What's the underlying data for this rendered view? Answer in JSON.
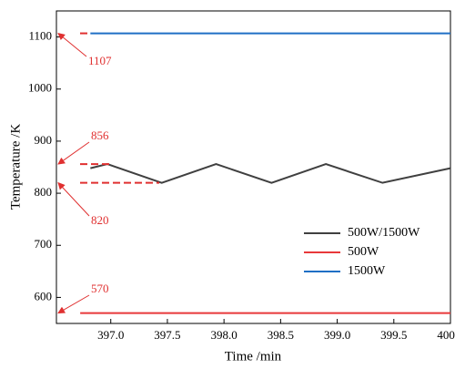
{
  "chart_data": {
    "type": "line",
    "x_label": "Time /min",
    "y_label": "Temperature /K",
    "xlim": [
      396.52,
      400.0
    ],
    "ylim": [
      550,
      1150
    ],
    "xticks": [
      {
        "value": 397,
        "label": "397.0"
      },
      {
        "value": 397.5,
        "label": "397.5"
      },
      {
        "value": 398,
        "label": "398.0"
      },
      {
        "value": 398.5,
        "label": "398.5"
      },
      {
        "value": 399,
        "label": "399.0"
      },
      {
        "value": 399.5,
        "label": "399.5"
      },
      {
        "value": 400,
        "label": "400.0"
      }
    ],
    "yticks": [
      600,
      700,
      800,
      900,
      1000,
      1100
    ],
    "series": [
      {
        "name": "500W/1500W",
        "color": "#404040",
        "x": [
          396.82,
          396.97,
          397.45,
          397.93,
          398.42,
          398.9,
          399.4,
          400.0
        ],
        "values": [
          848,
          856,
          820,
          856,
          820,
          856,
          820,
          848
        ]
      },
      {
        "name": "500W",
        "color": "#e8383a",
        "x": [
          396.73,
          400.0
        ],
        "values": [
          570,
          570
        ]
      },
      {
        "name": "1500W",
        "color": "#1f6fc5",
        "x": [
          396.82,
          400.0
        ],
        "values": [
          1107,
          1107
        ]
      }
    ],
    "annotations": [
      {
        "value": 1107
      },
      {
        "value": 856
      },
      {
        "value": 820
      },
      {
        "value": 570
      }
    ],
    "legend": "lower right"
  }
}
